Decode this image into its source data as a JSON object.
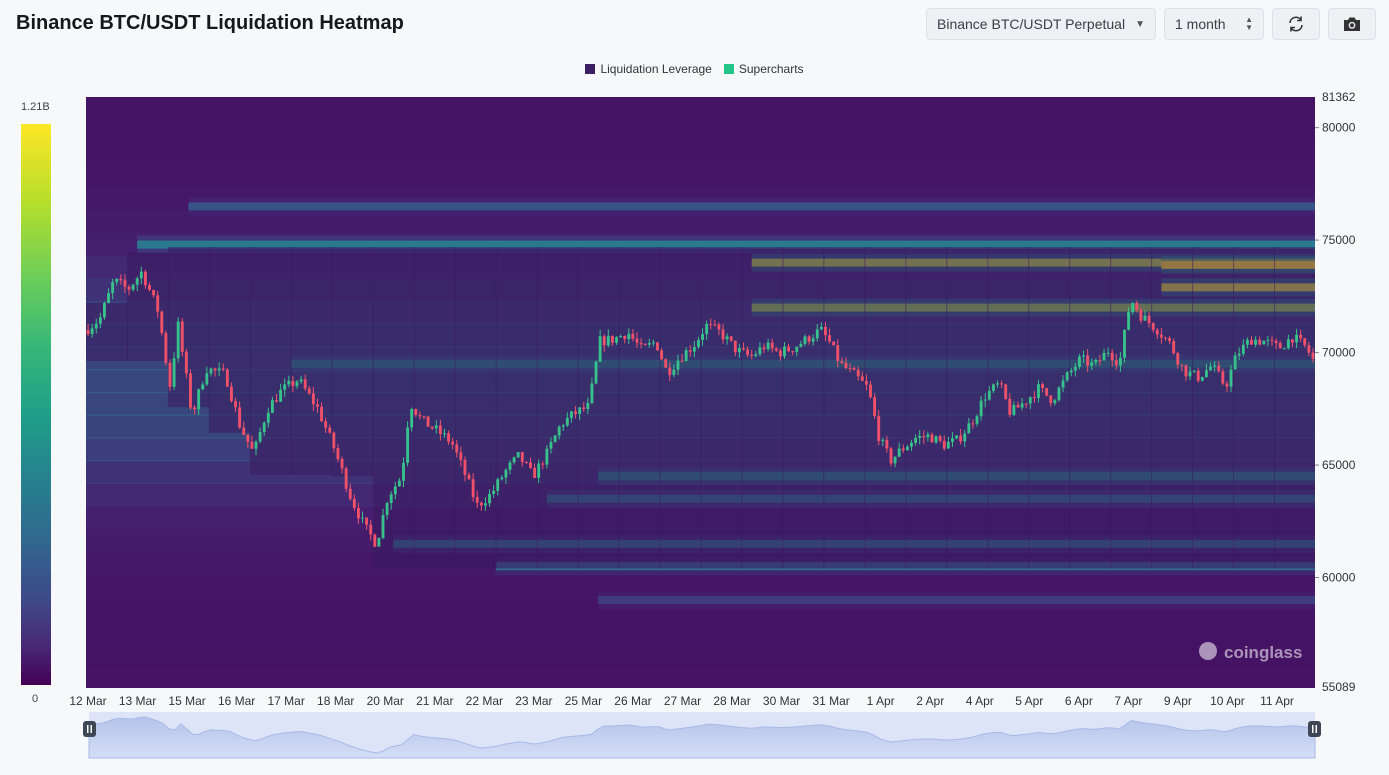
{
  "header": {
    "title": "Binance BTC/USDT Liquidation Heatmap",
    "pair_select": "Binance BTC/USDT Perpetual",
    "period_select": "1 month",
    "refresh_icon": "refresh-icon",
    "camera_icon": "camera-icon"
  },
  "legend": [
    {
      "label": "Liquidation Leverage",
      "color": "#3b1f63"
    },
    {
      "label": "Supercharts",
      "color": "#22c587"
    }
  ],
  "color_scale": {
    "max_label": "1.21B",
    "min_label": "0"
  },
  "watermark": "coinglass",
  "chart_data": {
    "type": "heatmap",
    "title": "Binance BTC/USDT Liquidation Heatmap",
    "ylim": [
      55089,
      81362
    ],
    "y_range_labels": [
      "81362",
      "55089"
    ],
    "y_ticks": [
      80000,
      75000,
      70000,
      65000,
      60000
    ],
    "x_ticks": [
      "12 Mar",
      "13 Mar",
      "15 Mar",
      "16 Mar",
      "17 Mar",
      "18 Mar",
      "20 Mar",
      "21 Mar",
      "22 Mar",
      "23 Mar",
      "25 Mar",
      "26 Mar",
      "27 Mar",
      "28 Mar",
      "30 Mar",
      "31 Mar",
      "1 Apr",
      "2 Apr",
      "4 Apr",
      "5 Apr",
      "6 Apr",
      "7 Apr",
      "9 Apr",
      "10 Apr",
      "11 Apr"
    ],
    "colorbar": {
      "min": 0,
      "max": 1210000000,
      "max_label": "1.21B",
      "min_label": "0"
    },
    "liquidation_bands": [
      {
        "price": 74000,
        "start": "28 Mar",
        "intensity": 0.9
      },
      {
        "price": 73900,
        "start": "7 Apr",
        "intensity": 1.0
      },
      {
        "price": 72900,
        "start": "7 Apr",
        "intensity": 0.95
      },
      {
        "price": 72000,
        "start": "28 Mar",
        "intensity": 0.85
      },
      {
        "price": 74800,
        "start": "13 Mar",
        "intensity": 0.45
      },
      {
        "price": 69500,
        "start": "17 Mar",
        "intensity": 0.55
      },
      {
        "price": 64500,
        "start": "25 Mar",
        "intensity": 0.55
      },
      {
        "price": 63500,
        "start": "23 Mar",
        "intensity": 0.45
      },
      {
        "price": 61500,
        "start": "20 Mar",
        "intensity": 0.4
      },
      {
        "price": 60500,
        "start": "22 Mar",
        "intensity": 0.35
      },
      {
        "price": 76500,
        "start": "15 Mar",
        "intensity": 0.3
      },
      {
        "price": 59000,
        "start": "25 Mar",
        "intensity": 0.25
      }
    ],
    "price_path": [
      {
        "d": 0.0,
        "p": 71000
      },
      {
        "d": 0.5,
        "p": 71500
      },
      {
        "d": 1.0,
        "p": 73200
      },
      {
        "d": 1.5,
        "p": 72800
      },
      {
        "d": 2.0,
        "p": 73600
      },
      {
        "d": 2.6,
        "p": 71800
      },
      {
        "d": 3.0,
        "p": 68500
      },
      {
        "d": 3.3,
        "p": 71200
      },
      {
        "d": 3.8,
        "p": 67200
      },
      {
        "d": 4.3,
        "p": 69300
      },
      {
        "d": 5.0,
        "p": 69000
      },
      {
        "d": 5.5,
        "p": 66800
      },
      {
        "d": 6.0,
        "p": 65500
      },
      {
        "d": 6.5,
        "p": 67500
      },
      {
        "d": 7.0,
        "p": 68300
      },
      {
        "d": 7.6,
        "p": 68800
      },
      {
        "d": 8.3,
        "p": 67500
      },
      {
        "d": 8.9,
        "p": 65700
      },
      {
        "d": 9.5,
        "p": 63500
      },
      {
        "d": 10.0,
        "p": 62200
      },
      {
        "d": 10.4,
        "p": 61500
      },
      {
        "d": 10.8,
        "p": 63600
      },
      {
        "d": 11.3,
        "p": 64500
      },
      {
        "d": 11.6,
        "p": 67800
      },
      {
        "d": 12.0,
        "p": 67000
      },
      {
        "d": 12.6,
        "p": 66500
      },
      {
        "d": 13.1,
        "p": 66000
      },
      {
        "d": 13.6,
        "p": 64500
      },
      {
        "d": 14.0,
        "p": 63200
      },
      {
        "d": 14.5,
        "p": 63700
      },
      {
        "d": 15.0,
        "p": 64700
      },
      {
        "d": 15.5,
        "p": 65400
      },
      {
        "d": 16.0,
        "p": 64500
      },
      {
        "d": 16.5,
        "p": 65500
      },
      {
        "d": 17.0,
        "p": 66800
      },
      {
        "d": 17.5,
        "p": 67300
      },
      {
        "d": 18.0,
        "p": 67600
      },
      {
        "d": 18.4,
        "p": 70500
      },
      {
        "d": 18.9,
        "p": 70600
      },
      {
        "d": 19.4,
        "p": 70900
      },
      {
        "d": 19.9,
        "p": 70100
      },
      {
        "d": 20.4,
        "p": 70500
      },
      {
        "d": 20.8,
        "p": 69100
      },
      {
        "d": 21.2,
        "p": 69700
      },
      {
        "d": 21.8,
        "p": 70400
      },
      {
        "d": 22.2,
        "p": 71200
      },
      {
        "d": 22.7,
        "p": 70900
      },
      {
        "d": 23.3,
        "p": 70100
      },
      {
        "d": 23.8,
        "p": 69800
      },
      {
        "d": 24.3,
        "p": 70300
      },
      {
        "d": 24.8,
        "p": 70000
      },
      {
        "d": 25.3,
        "p": 70200
      },
      {
        "d": 25.8,
        "p": 70600
      },
      {
        "d": 26.3,
        "p": 71000
      },
      {
        "d": 26.6,
        "p": 70500
      },
      {
        "d": 27.0,
        "p": 69500
      },
      {
        "d": 27.5,
        "p": 69000
      },
      {
        "d": 28.0,
        "p": 68400
      },
      {
        "d": 28.4,
        "p": 66200
      },
      {
        "d": 28.8,
        "p": 65200
      },
      {
        "d": 29.2,
        "p": 65700
      },
      {
        "d": 29.7,
        "p": 66200
      },
      {
        "d": 30.2,
        "p": 66300
      },
      {
        "d": 30.7,
        "p": 65900
      },
      {
        "d": 31.2,
        "p": 66100
      },
      {
        "d": 31.7,
        "p": 66900
      },
      {
        "d": 32.2,
        "p": 68100
      },
      {
        "d": 32.7,
        "p": 68600
      },
      {
        "d": 33.1,
        "p": 67300
      },
      {
        "d": 33.6,
        "p": 67800
      },
      {
        "d": 34.1,
        "p": 68400
      },
      {
        "d": 34.6,
        "p": 67900
      },
      {
        "d": 35.1,
        "p": 68900
      },
      {
        "d": 35.6,
        "p": 69700
      },
      {
        "d": 36.1,
        "p": 69400
      },
      {
        "d": 36.6,
        "p": 70100
      },
      {
        "d": 37.0,
        "p": 69500
      },
      {
        "d": 37.4,
        "p": 72400
      },
      {
        "d": 37.8,
        "p": 71600
      },
      {
        "d": 38.3,
        "p": 71100
      },
      {
        "d": 38.8,
        "p": 70400
      },
      {
        "d": 39.3,
        "p": 69200
      },
      {
        "d": 39.8,
        "p": 68900
      },
      {
        "d": 40.3,
        "p": 69400
      },
      {
        "d": 40.8,
        "p": 68500
      },
      {
        "d": 41.2,
        "p": 69900
      },
      {
        "d": 41.7,
        "p": 70600
      },
      {
        "d": 42.2,
        "p": 70500
      },
      {
        "d": 42.7,
        "p": 70200
      },
      {
        "d": 43.2,
        "p": 70700
      },
      {
        "d": 43.7,
        "p": 70200
      },
      {
        "d": 44.0,
        "p": 69500
      }
    ]
  },
  "navigator": {
    "left_handle": "pause-icon",
    "right_handle": "pause-icon"
  }
}
